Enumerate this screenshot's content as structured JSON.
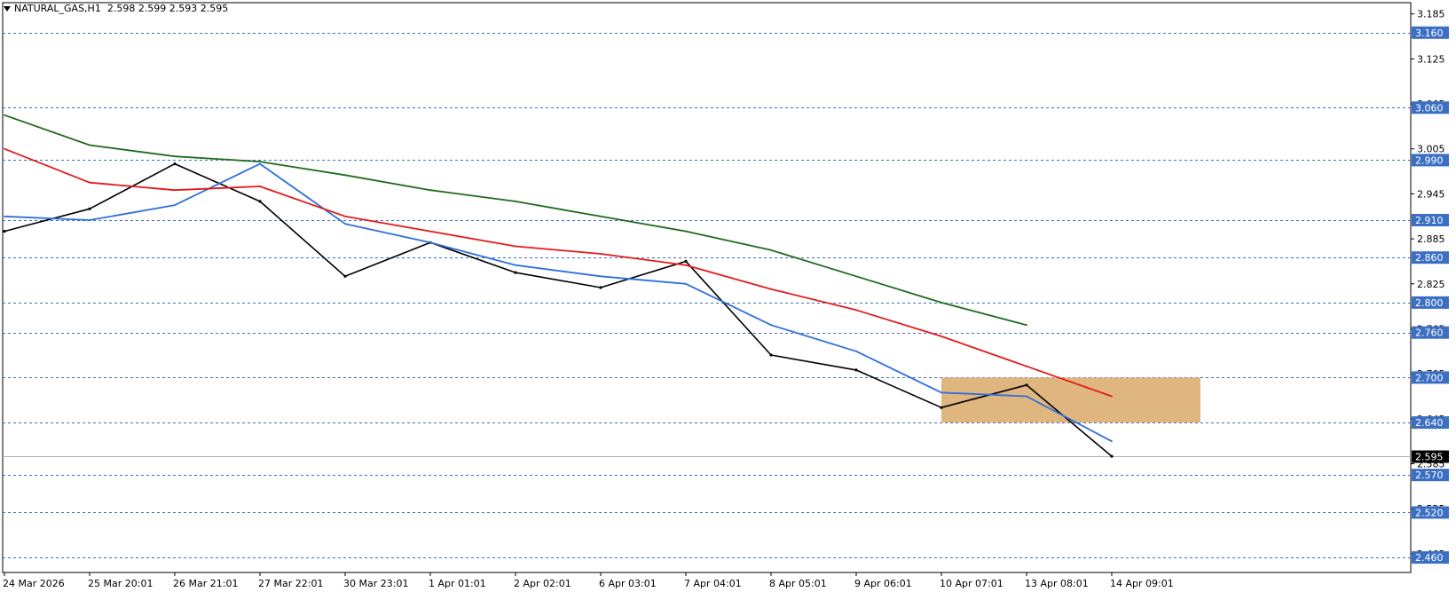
{
  "header": {
    "symbol": "NATURAL_GAS,H1",
    "ohlc": "2.598 2.599 2.593 2.595"
  },
  "colors": {
    "ema_fast": "#2f6fdc",
    "ema_mid": "#e31b1b",
    "ema_slow": "#1f6b1f",
    "price": "#000000",
    "level_line": "#3b6fc4",
    "level_tag": "#3b6fc4",
    "zone": "#d9a86a",
    "current_tag": "#000000"
  },
  "chart_data": {
    "type": "line",
    "title": "",
    "ylim": [
      2.44,
      3.2
    ],
    "y_ticks": [
      "3.185",
      "3.125",
      "3.065",
      "3.005",
      "2.945",
      "2.885",
      "2.825",
      "2.765",
      "2.705",
      "2.645",
      "2.585",
      "2.525",
      "2.465"
    ],
    "x_ticks": [
      "24 Mar 2026",
      "25 Mar 20:01",
      "26 Mar 21:01",
      "27 Mar 22:01",
      "30 Mar 23:01",
      "1 Apr 01:01",
      "2 Apr 02:01",
      "6 Apr 03:01",
      "7 Apr 04:01",
      "8 Apr 05:01",
      "9 Apr 06:01",
      "10 Apr 07:01",
      "13 Apr 08:01",
      "14 Apr 09:01"
    ],
    "levels": [
      "3.160",
      "3.060",
      "2.990",
      "2.910",
      "2.860",
      "2.800",
      "2.760",
      "2.700",
      "2.640",
      "2.570",
      "2.520",
      "2.460"
    ],
    "current_price": "2.595",
    "zone": {
      "from_label": "10 Apr 07:01",
      "high": 2.7,
      "low": 2.64
    },
    "series": [
      {
        "x": [
          "24 Mar 2026",
          "25 Mar 20:01",
          "26 Mar 21:01",
          "27 Mar 22:01",
          "30 Mar 23:01",
          "1 Apr 01:01",
          "2 Apr 02:01",
          "6 Apr 03:01",
          "7 Apr 04:01",
          "8 Apr 05:01",
          "9 Apr 06:01",
          "10 Apr 07:01",
          "13 Apr 08:01",
          "14 Apr 09:01"
        ],
        "values": [
          2.895,
          2.925,
          2.985,
          2.935,
          2.835,
          2.88,
          2.84,
          2.82,
          2.855,
          2.73,
          2.71,
          2.66,
          2.69,
          2.595
        ]
      },
      {
        "x": [
          "24 Mar 2026",
          "25 Mar 20:01",
          "26 Mar 21:01",
          "27 Mar 22:01",
          "30 Mar 23:01",
          "1 Apr 01:01",
          "2 Apr 02:01",
          "6 Apr 03:01",
          "7 Apr 04:01",
          "8 Apr 05:01",
          "9 Apr 06:01",
          "10 Apr 07:01",
          "13 Apr 08:01",
          "14 Apr 09:01"
        ],
        "values": [
          2.915,
          2.91,
          2.93,
          2.985,
          2.905,
          2.88,
          2.85,
          2.835,
          2.825,
          2.77,
          2.735,
          2.68,
          2.675,
          2.615
        ]
      },
      {
        "x": [
          "24 Mar 2026",
          "25 Mar 20:01",
          "26 Mar 21:01",
          "27 Mar 22:01",
          "30 Mar 23:01",
          "1 Apr 01:01",
          "2 Apr 02:01",
          "6 Apr 03:01",
          "7 Apr 04:01",
          "8 Apr 05:01",
          "9 Apr 06:01",
          "10 Apr 07:01",
          "13 Apr 08:01",
          "14 Apr 09:01"
        ],
        "values": [
          3.005,
          2.96,
          2.95,
          2.955,
          2.915,
          2.895,
          2.875,
          2.865,
          2.85,
          2.818,
          2.79,
          2.755,
          2.715,
          2.675
        ]
      },
      {
        "x": [
          "24 Mar 2026",
          "25 Mar 20:01",
          "26 Mar 21:01",
          "27 Mar 22:01",
          "30 Mar 23:01",
          "1 Apr 01:01",
          "2 Apr 02:01",
          "6 Apr 03:01",
          "7 Apr 04:01",
          "8 Apr 05:01",
          "9 Apr 06:01",
          "10 Apr 07:01",
          "13 Apr 08:01"
        ],
        "values": [
          3.05,
          3.01,
          2.995,
          2.988,
          2.97,
          2.95,
          2.935,
          2.915,
          2.895,
          2.87,
          2.835,
          2.8,
          2.77
        ]
      }
    ]
  }
}
